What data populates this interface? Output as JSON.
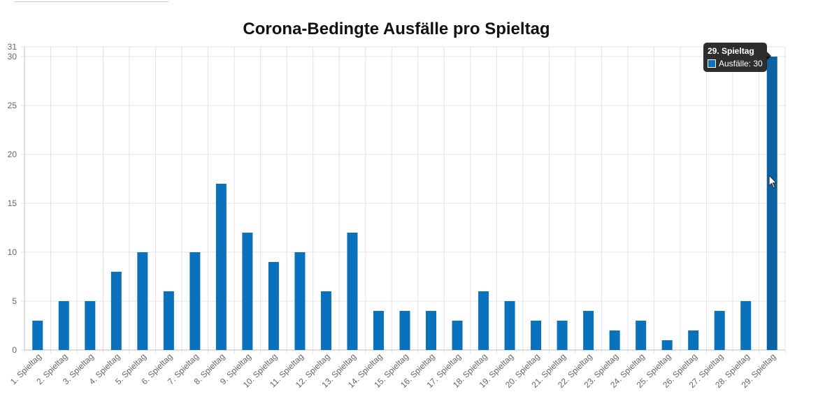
{
  "chart_data": {
    "type": "bar",
    "title": "Corona-Bedingte Ausfälle pro Spieltag",
    "xlabel": "",
    "ylabel": "",
    "ylim": [
      0,
      31
    ],
    "yticks": [
      0,
      5,
      10,
      15,
      20,
      25,
      30,
      31
    ],
    "grid": true,
    "categories": [
      "1. Spieltag",
      "2. Spieltag",
      "3. Spieltag",
      "4. Spieltag",
      "5. Spieltag",
      "6. Spieltag",
      "7. Spieltag",
      "8. Spieltag",
      "9. Spieltag",
      "10. Spieltag",
      "11. Spieltag",
      "12. Spieltag",
      "13. Spieltag",
      "14. Spieltag",
      "15. Spieltag",
      "16. Spieltag",
      "17. Spieltag",
      "18. Spieltag",
      "19. Spieltag",
      "20. Spieltag",
      "21. Spieltag",
      "22. Spieltag",
      "23. Spieltag",
      "24. Spieltag",
      "25. Spieltag",
      "26. Spieltag",
      "27. Spieltag",
      "28. Spieltag",
      "29. Spieltag"
    ],
    "series": [
      {
        "name": "Ausfälle",
        "values": [
          3,
          5,
          5,
          8,
          10,
          6,
          10,
          17,
          12,
          9,
          10,
          6,
          12,
          4,
          4,
          4,
          3,
          6,
          5,
          3,
          3,
          4,
          2,
          3,
          1,
          2,
          4,
          5,
          30
        ]
      }
    ],
    "bar_color": "#0a71bd",
    "highlight_color": "#0a62a4",
    "highlight_index": 28
  },
  "tooltip": {
    "title": "29. Spieltag",
    "label": "Ausfälle: 30"
  }
}
